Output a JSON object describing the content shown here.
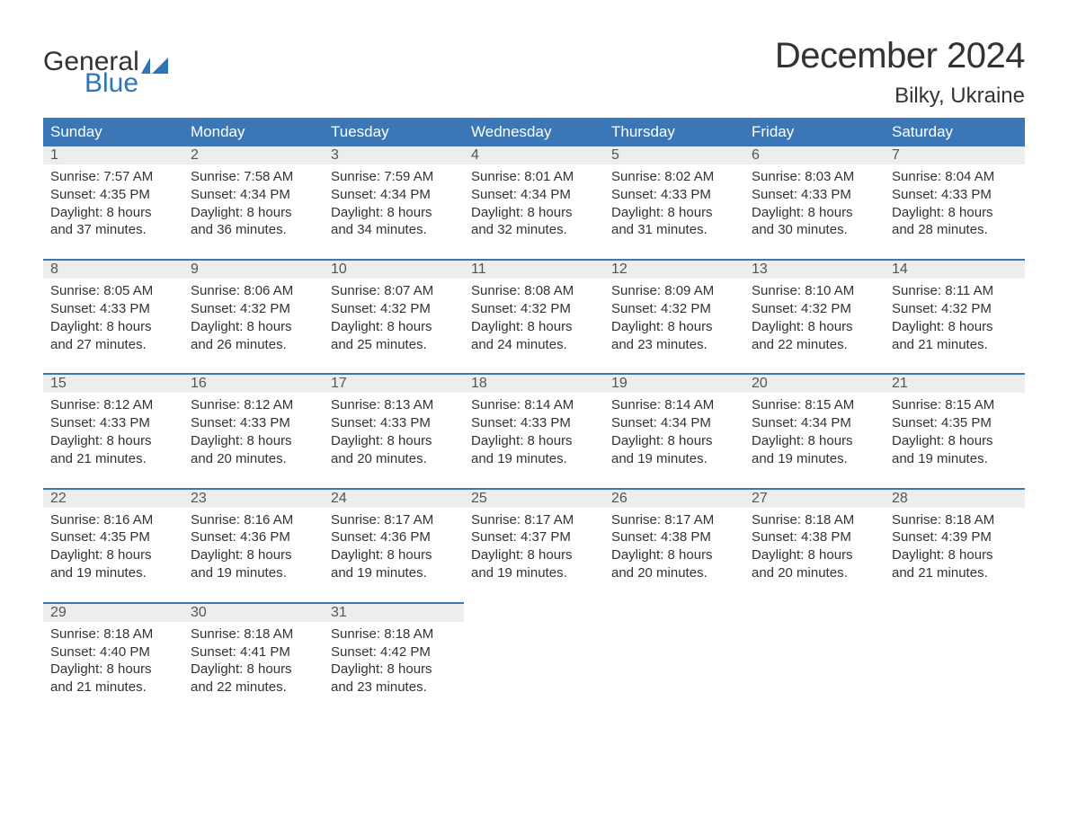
{
  "logo": {
    "text1": "General",
    "text2": "Blue",
    "flag_color": "#2f74b5",
    "text1_color": "#333333"
  },
  "title": "December 2024",
  "location": "Bilky, Ukraine",
  "colors": {
    "header_bg": "#3b77b6",
    "header_text": "#ffffff",
    "daynum_bg": "#ededed",
    "daynum_border": "#3b77b6",
    "body_text": "#333333",
    "daynum_text": "#555555",
    "page_bg": "#ffffff"
  },
  "typography": {
    "title_fontsize": 40,
    "location_fontsize": 24,
    "header_fontsize": 17,
    "daynum_fontsize": 16,
    "body_fontsize": 15,
    "font_family": "Arial"
  },
  "layout": {
    "columns": 7,
    "weeks": 5
  },
  "weekdays": [
    "Sunday",
    "Monday",
    "Tuesday",
    "Wednesday",
    "Thursday",
    "Friday",
    "Saturday"
  ],
  "days": [
    {
      "n": "1",
      "sunrise": "Sunrise: 7:57 AM",
      "sunset": "Sunset: 4:35 PM",
      "d1": "Daylight: 8 hours",
      "d2": "and 37 minutes."
    },
    {
      "n": "2",
      "sunrise": "Sunrise: 7:58 AM",
      "sunset": "Sunset: 4:34 PM",
      "d1": "Daylight: 8 hours",
      "d2": "and 36 minutes."
    },
    {
      "n": "3",
      "sunrise": "Sunrise: 7:59 AM",
      "sunset": "Sunset: 4:34 PM",
      "d1": "Daylight: 8 hours",
      "d2": "and 34 minutes."
    },
    {
      "n": "4",
      "sunrise": "Sunrise: 8:01 AM",
      "sunset": "Sunset: 4:34 PM",
      "d1": "Daylight: 8 hours",
      "d2": "and 32 minutes."
    },
    {
      "n": "5",
      "sunrise": "Sunrise: 8:02 AM",
      "sunset": "Sunset: 4:33 PM",
      "d1": "Daylight: 8 hours",
      "d2": "and 31 minutes."
    },
    {
      "n": "6",
      "sunrise": "Sunrise: 8:03 AM",
      "sunset": "Sunset: 4:33 PM",
      "d1": "Daylight: 8 hours",
      "d2": "and 30 minutes."
    },
    {
      "n": "7",
      "sunrise": "Sunrise: 8:04 AM",
      "sunset": "Sunset: 4:33 PM",
      "d1": "Daylight: 8 hours",
      "d2": "and 28 minutes."
    },
    {
      "n": "8",
      "sunrise": "Sunrise: 8:05 AM",
      "sunset": "Sunset: 4:33 PM",
      "d1": "Daylight: 8 hours",
      "d2": "and 27 minutes."
    },
    {
      "n": "9",
      "sunrise": "Sunrise: 8:06 AM",
      "sunset": "Sunset: 4:32 PM",
      "d1": "Daylight: 8 hours",
      "d2": "and 26 minutes."
    },
    {
      "n": "10",
      "sunrise": "Sunrise: 8:07 AM",
      "sunset": "Sunset: 4:32 PM",
      "d1": "Daylight: 8 hours",
      "d2": "and 25 minutes."
    },
    {
      "n": "11",
      "sunrise": "Sunrise: 8:08 AM",
      "sunset": "Sunset: 4:32 PM",
      "d1": "Daylight: 8 hours",
      "d2": "and 24 minutes."
    },
    {
      "n": "12",
      "sunrise": "Sunrise: 8:09 AM",
      "sunset": "Sunset: 4:32 PM",
      "d1": "Daylight: 8 hours",
      "d2": "and 23 minutes."
    },
    {
      "n": "13",
      "sunrise": "Sunrise: 8:10 AM",
      "sunset": "Sunset: 4:32 PM",
      "d1": "Daylight: 8 hours",
      "d2": "and 22 minutes."
    },
    {
      "n": "14",
      "sunrise": "Sunrise: 8:11 AM",
      "sunset": "Sunset: 4:32 PM",
      "d1": "Daylight: 8 hours",
      "d2": "and 21 minutes."
    },
    {
      "n": "15",
      "sunrise": "Sunrise: 8:12 AM",
      "sunset": "Sunset: 4:33 PM",
      "d1": "Daylight: 8 hours",
      "d2": "and 21 minutes."
    },
    {
      "n": "16",
      "sunrise": "Sunrise: 8:12 AM",
      "sunset": "Sunset: 4:33 PM",
      "d1": "Daylight: 8 hours",
      "d2": "and 20 minutes."
    },
    {
      "n": "17",
      "sunrise": "Sunrise: 8:13 AM",
      "sunset": "Sunset: 4:33 PM",
      "d1": "Daylight: 8 hours",
      "d2": "and 20 minutes."
    },
    {
      "n": "18",
      "sunrise": "Sunrise: 8:14 AM",
      "sunset": "Sunset: 4:33 PM",
      "d1": "Daylight: 8 hours",
      "d2": "and 19 minutes."
    },
    {
      "n": "19",
      "sunrise": "Sunrise: 8:14 AM",
      "sunset": "Sunset: 4:34 PM",
      "d1": "Daylight: 8 hours",
      "d2": "and 19 minutes."
    },
    {
      "n": "20",
      "sunrise": "Sunrise: 8:15 AM",
      "sunset": "Sunset: 4:34 PM",
      "d1": "Daylight: 8 hours",
      "d2": "and 19 minutes."
    },
    {
      "n": "21",
      "sunrise": "Sunrise: 8:15 AM",
      "sunset": "Sunset: 4:35 PM",
      "d1": "Daylight: 8 hours",
      "d2": "and 19 minutes."
    },
    {
      "n": "22",
      "sunrise": "Sunrise: 8:16 AM",
      "sunset": "Sunset: 4:35 PM",
      "d1": "Daylight: 8 hours",
      "d2": "and 19 minutes."
    },
    {
      "n": "23",
      "sunrise": "Sunrise: 8:16 AM",
      "sunset": "Sunset: 4:36 PM",
      "d1": "Daylight: 8 hours",
      "d2": "and 19 minutes."
    },
    {
      "n": "24",
      "sunrise": "Sunrise: 8:17 AM",
      "sunset": "Sunset: 4:36 PM",
      "d1": "Daylight: 8 hours",
      "d2": "and 19 minutes."
    },
    {
      "n": "25",
      "sunrise": "Sunrise: 8:17 AM",
      "sunset": "Sunset: 4:37 PM",
      "d1": "Daylight: 8 hours",
      "d2": "and 19 minutes."
    },
    {
      "n": "26",
      "sunrise": "Sunrise: 8:17 AM",
      "sunset": "Sunset: 4:38 PM",
      "d1": "Daylight: 8 hours",
      "d2": "and 20 minutes."
    },
    {
      "n": "27",
      "sunrise": "Sunrise: 8:18 AM",
      "sunset": "Sunset: 4:38 PM",
      "d1": "Daylight: 8 hours",
      "d2": "and 20 minutes."
    },
    {
      "n": "28",
      "sunrise": "Sunrise: 8:18 AM",
      "sunset": "Sunset: 4:39 PM",
      "d1": "Daylight: 8 hours",
      "d2": "and 21 minutes."
    },
    {
      "n": "29",
      "sunrise": "Sunrise: 8:18 AM",
      "sunset": "Sunset: 4:40 PM",
      "d1": "Daylight: 8 hours",
      "d2": "and 21 minutes."
    },
    {
      "n": "30",
      "sunrise": "Sunrise: 8:18 AM",
      "sunset": "Sunset: 4:41 PM",
      "d1": "Daylight: 8 hours",
      "d2": "and 22 minutes."
    },
    {
      "n": "31",
      "sunrise": "Sunrise: 8:18 AM",
      "sunset": "Sunset: 4:42 PM",
      "d1": "Daylight: 8 hours",
      "d2": "and 23 minutes."
    }
  ]
}
